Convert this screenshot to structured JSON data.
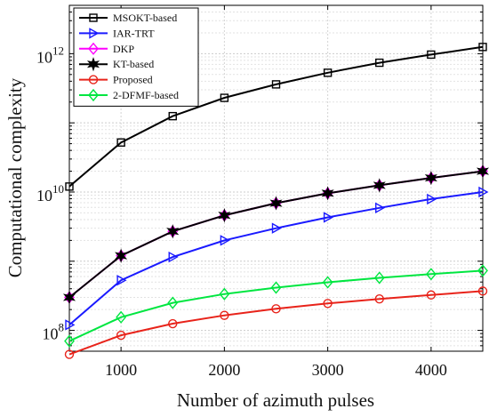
{
  "chart_data": {
    "type": "line",
    "xlabel": "Number of azimuth pulses",
    "ylabel": "Computational complexity",
    "x": [
      500,
      1000,
      1500,
      2000,
      2500,
      3000,
      3500,
      4000,
      4500
    ],
    "xlim": [
      500,
      4500
    ],
    "xticks": [
      1000,
      2000,
      3000,
      4000
    ],
    "xtick_labels": [
      "1000",
      "2000",
      "3000",
      "4000"
    ],
    "yscale": "log",
    "ylim": [
      50000000.0,
      5000000000000.0
    ],
    "yticks": [
      {
        "base": "10",
        "exp": "8",
        "value": 100000000.0
      },
      {
        "base": "10",
        "exp": "10",
        "value": 10000000000.0
      },
      {
        "base": "10",
        "exp": "12",
        "value": 1000000000000.0
      }
    ],
    "grid": true,
    "legend_position": "top-left",
    "series": [
      {
        "name": "MSOKT-based",
        "color": "#000000",
        "marker": "square",
        "values": [
          12000000000.0,
          52000000000.0,
          125000000000.0,
          230000000000.0,
          360000000000.0,
          530000000000.0,
          740000000000.0,
          970000000000.0,
          1250000000000.0
        ]
      },
      {
        "name": "IAR-TRT",
        "color": "#1a1aff",
        "marker": "triangle-right",
        "values": [
          120000000.0,
          530000000.0,
          1150000000.0,
          2000000000.0,
          3000000000.0,
          4300000000.0,
          5900000000.0,
          7900000000.0,
          10000000000.0
        ]
      },
      {
        "name": "DKP",
        "color": "#ff00ff",
        "marker": "diamond",
        "values": [
          300000000.0,
          1200000000.0,
          2700000000.0,
          4600000000.0,
          6900000000.0,
          9600000000.0,
          12500000000.0,
          16000000000.0,
          20000000000.0
        ]
      },
      {
        "name": "KT-based",
        "color": "#000000",
        "marker": "star",
        "values": [
          300000000.0,
          1200000000.0,
          2700000000.0,
          4600000000.0,
          6900000000.0,
          9600000000.0,
          12500000000.0,
          16000000000.0,
          20000000000.0
        ]
      },
      {
        "name": "Proposed",
        "color": "#e8231a",
        "marker": "circle",
        "values": [
          45000000.0,
          85000000.0,
          125000000.0,
          165000000.0,
          205000000.0,
          245000000.0,
          285000000.0,
          325000000.0,
          370000000.0
        ]
      },
      {
        "name": "2-DFMF-based",
        "color": "#00e640",
        "marker": "diamond",
        "values": [
          70000000.0,
          155000000.0,
          250000000.0,
          335000000.0,
          415000000.0,
          495000000.0,
          575000000.0,
          650000000.0,
          730000000.0
        ]
      }
    ]
  }
}
